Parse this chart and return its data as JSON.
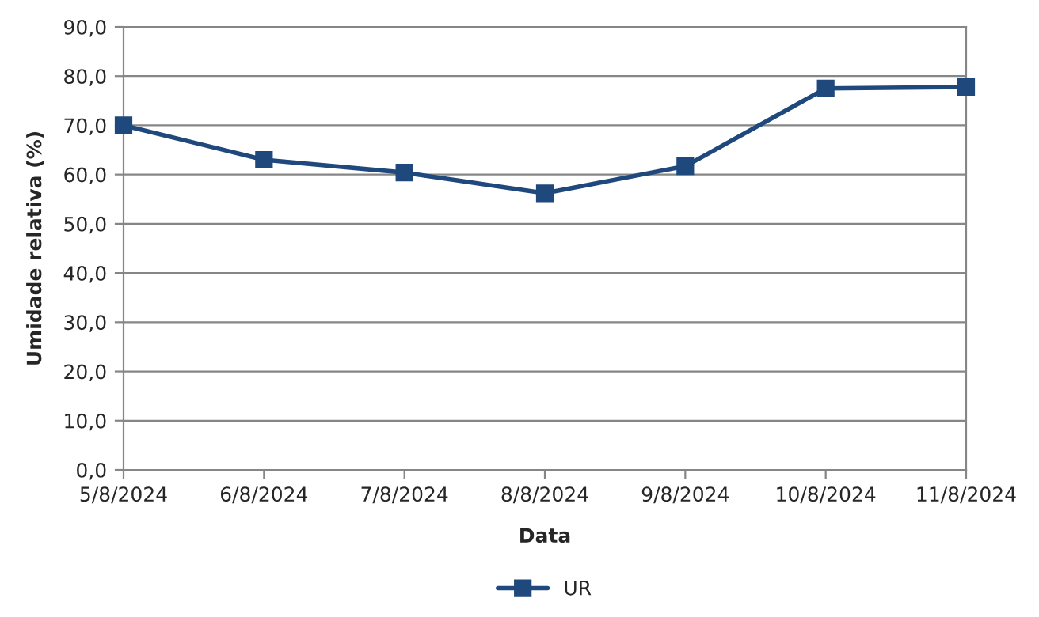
{
  "chart_data": {
    "type": "line",
    "xlabel": "Data",
    "ylabel": "Umidade relativa (%)",
    "categories": [
      "5/8/2024",
      "6/8/2024",
      "7/8/2024",
      "8/8/2024",
      "9/8/2024",
      "10/8/2024",
      "11/8/2024"
    ],
    "series": [
      {
        "name": "UR",
        "color": "#1f497d",
        "values": [
          70.0,
          63.0,
          60.4,
          56.2,
          61.7,
          77.5,
          77.8
        ]
      }
    ],
    "ylim": [
      0,
      90
    ],
    "yticks": [
      {
        "value": 0,
        "label": "0,0"
      },
      {
        "value": 10,
        "label": "10,0"
      },
      {
        "value": 20,
        "label": "20,0"
      },
      {
        "value": 30,
        "label": "30,0"
      },
      {
        "value": 40,
        "label": "40,0"
      },
      {
        "value": 50,
        "label": "50,0"
      },
      {
        "value": 60,
        "label": "60,0"
      },
      {
        "value": 70,
        "label": "70,0"
      },
      {
        "value": 80,
        "label": "80,0"
      },
      {
        "value": 90,
        "label": "90,0"
      }
    ],
    "grid": "y",
    "legend": "bottom",
    "marker": "square",
    "line_style": "solid"
  }
}
